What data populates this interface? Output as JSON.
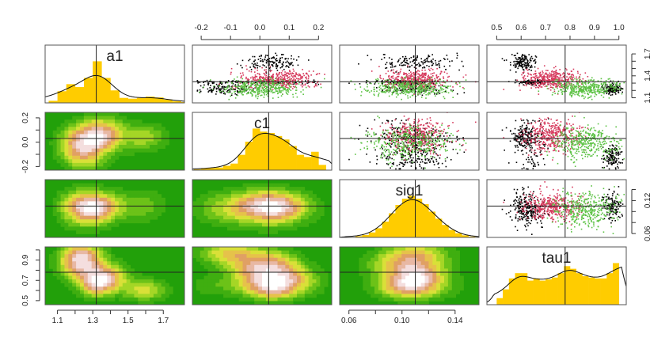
{
  "chart_data": {
    "type": "scatter",
    "layout": "pairs-matrix-4x4",
    "variables": [
      {
        "name": "a1",
        "range": [
          1.03,
          1.82
        ],
        "ticks": [
          1.1,
          1.2,
          1.3,
          1.4,
          1.5,
          1.6,
          1.7
        ],
        "bottom_labels": [
          "1.1",
          "1.3",
          "1.5",
          "1.7"
        ],
        "right_labels": [
          "1.1",
          "1.4",
          "1.7"
        ],
        "reference": 1.32,
        "hist": {
          "start": 1.05,
          "width": 0.05,
          "values": [
            0.05,
            0.28,
            0.45,
            0.38,
            0.6,
            1.0,
            0.6,
            0.3,
            0.12,
            0.1,
            0.12,
            0.15,
            0.13,
            0.08,
            0.04,
            0.02
          ]
        }
      },
      {
        "name": "c1",
        "range": [
          -0.23,
          0.245
        ],
        "ticks": [
          -0.2,
          -0.1,
          0.0,
          0.1,
          0.2
        ],
        "top_labels": [
          "-0.2",
          "-0.1",
          "0.0",
          "0.1",
          "0.2"
        ],
        "left_labels": [
          "-0.2",
          "0.0",
          "0.2"
        ],
        "reference": 0.03,
        "hist": {
          "start": -0.225,
          "width": 0.025,
          "values": [
            0.02,
            0.04,
            0.05,
            0.06,
            0.1,
            0.15,
            0.35,
            0.65,
            0.95,
            0.88,
            0.85,
            0.78,
            0.7,
            0.55,
            0.35,
            0.3,
            0.42,
            0.12
          ]
        }
      },
      {
        "name": "sig1",
        "range": [
          0.053,
          0.158
        ],
        "ticks": [
          0.06,
          0.08,
          0.1,
          0.12,
          0.14
        ],
        "bottom_labels": [
          "0.06",
          "0.10",
          "0.14"
        ],
        "right_labels": [
          "0.06",
          "0.12"
        ],
        "reference": 0.11,
        "hist": {
          "start": 0.06,
          "width": 0.005,
          "values": [
            0.01,
            0.03,
            0.06,
            0.12,
            0.22,
            0.38,
            0.58,
            0.78,
            0.93,
            1.0,
            0.93,
            0.8,
            0.62,
            0.45,
            0.3,
            0.18,
            0.1,
            0.05,
            0.02,
            0.01
          ]
        }
      },
      {
        "name": "tau1",
        "range": [
          0.46,
          1.03
        ],
        "ticks": [
          0.5,
          0.6,
          0.7,
          0.8,
          0.9,
          1.0
        ],
        "top_labels": [
          "0.5",
          "0.6",
          "0.7",
          "0.8",
          "0.9",
          "1.0"
        ],
        "left_labels": [
          "0.5",
          "0.7",
          "0.9"
        ],
        "reference": 0.78,
        "hist": {
          "start": 0.5,
          "width": 0.025,
          "values": [
            0.15,
            0.35,
            0.6,
            0.72,
            0.72,
            0.55,
            0.6,
            0.55,
            0.58,
            0.62,
            0.72,
            0.88,
            0.82,
            0.72,
            0.65,
            0.62,
            0.6,
            0.6,
            0.72,
            0.95
          ]
        }
      }
    ],
    "upper_panels": "scatter of MCMC draws, colored by chain",
    "lower_panels": "2D density contours",
    "diagonal_panels": "histogram with density curve",
    "chain_colors": [
      "#000000",
      "#d6395c",
      "#5cc244"
    ],
    "colors": {
      "histogram": "#ffcc00",
      "density_background": "#22a00a"
    }
  }
}
